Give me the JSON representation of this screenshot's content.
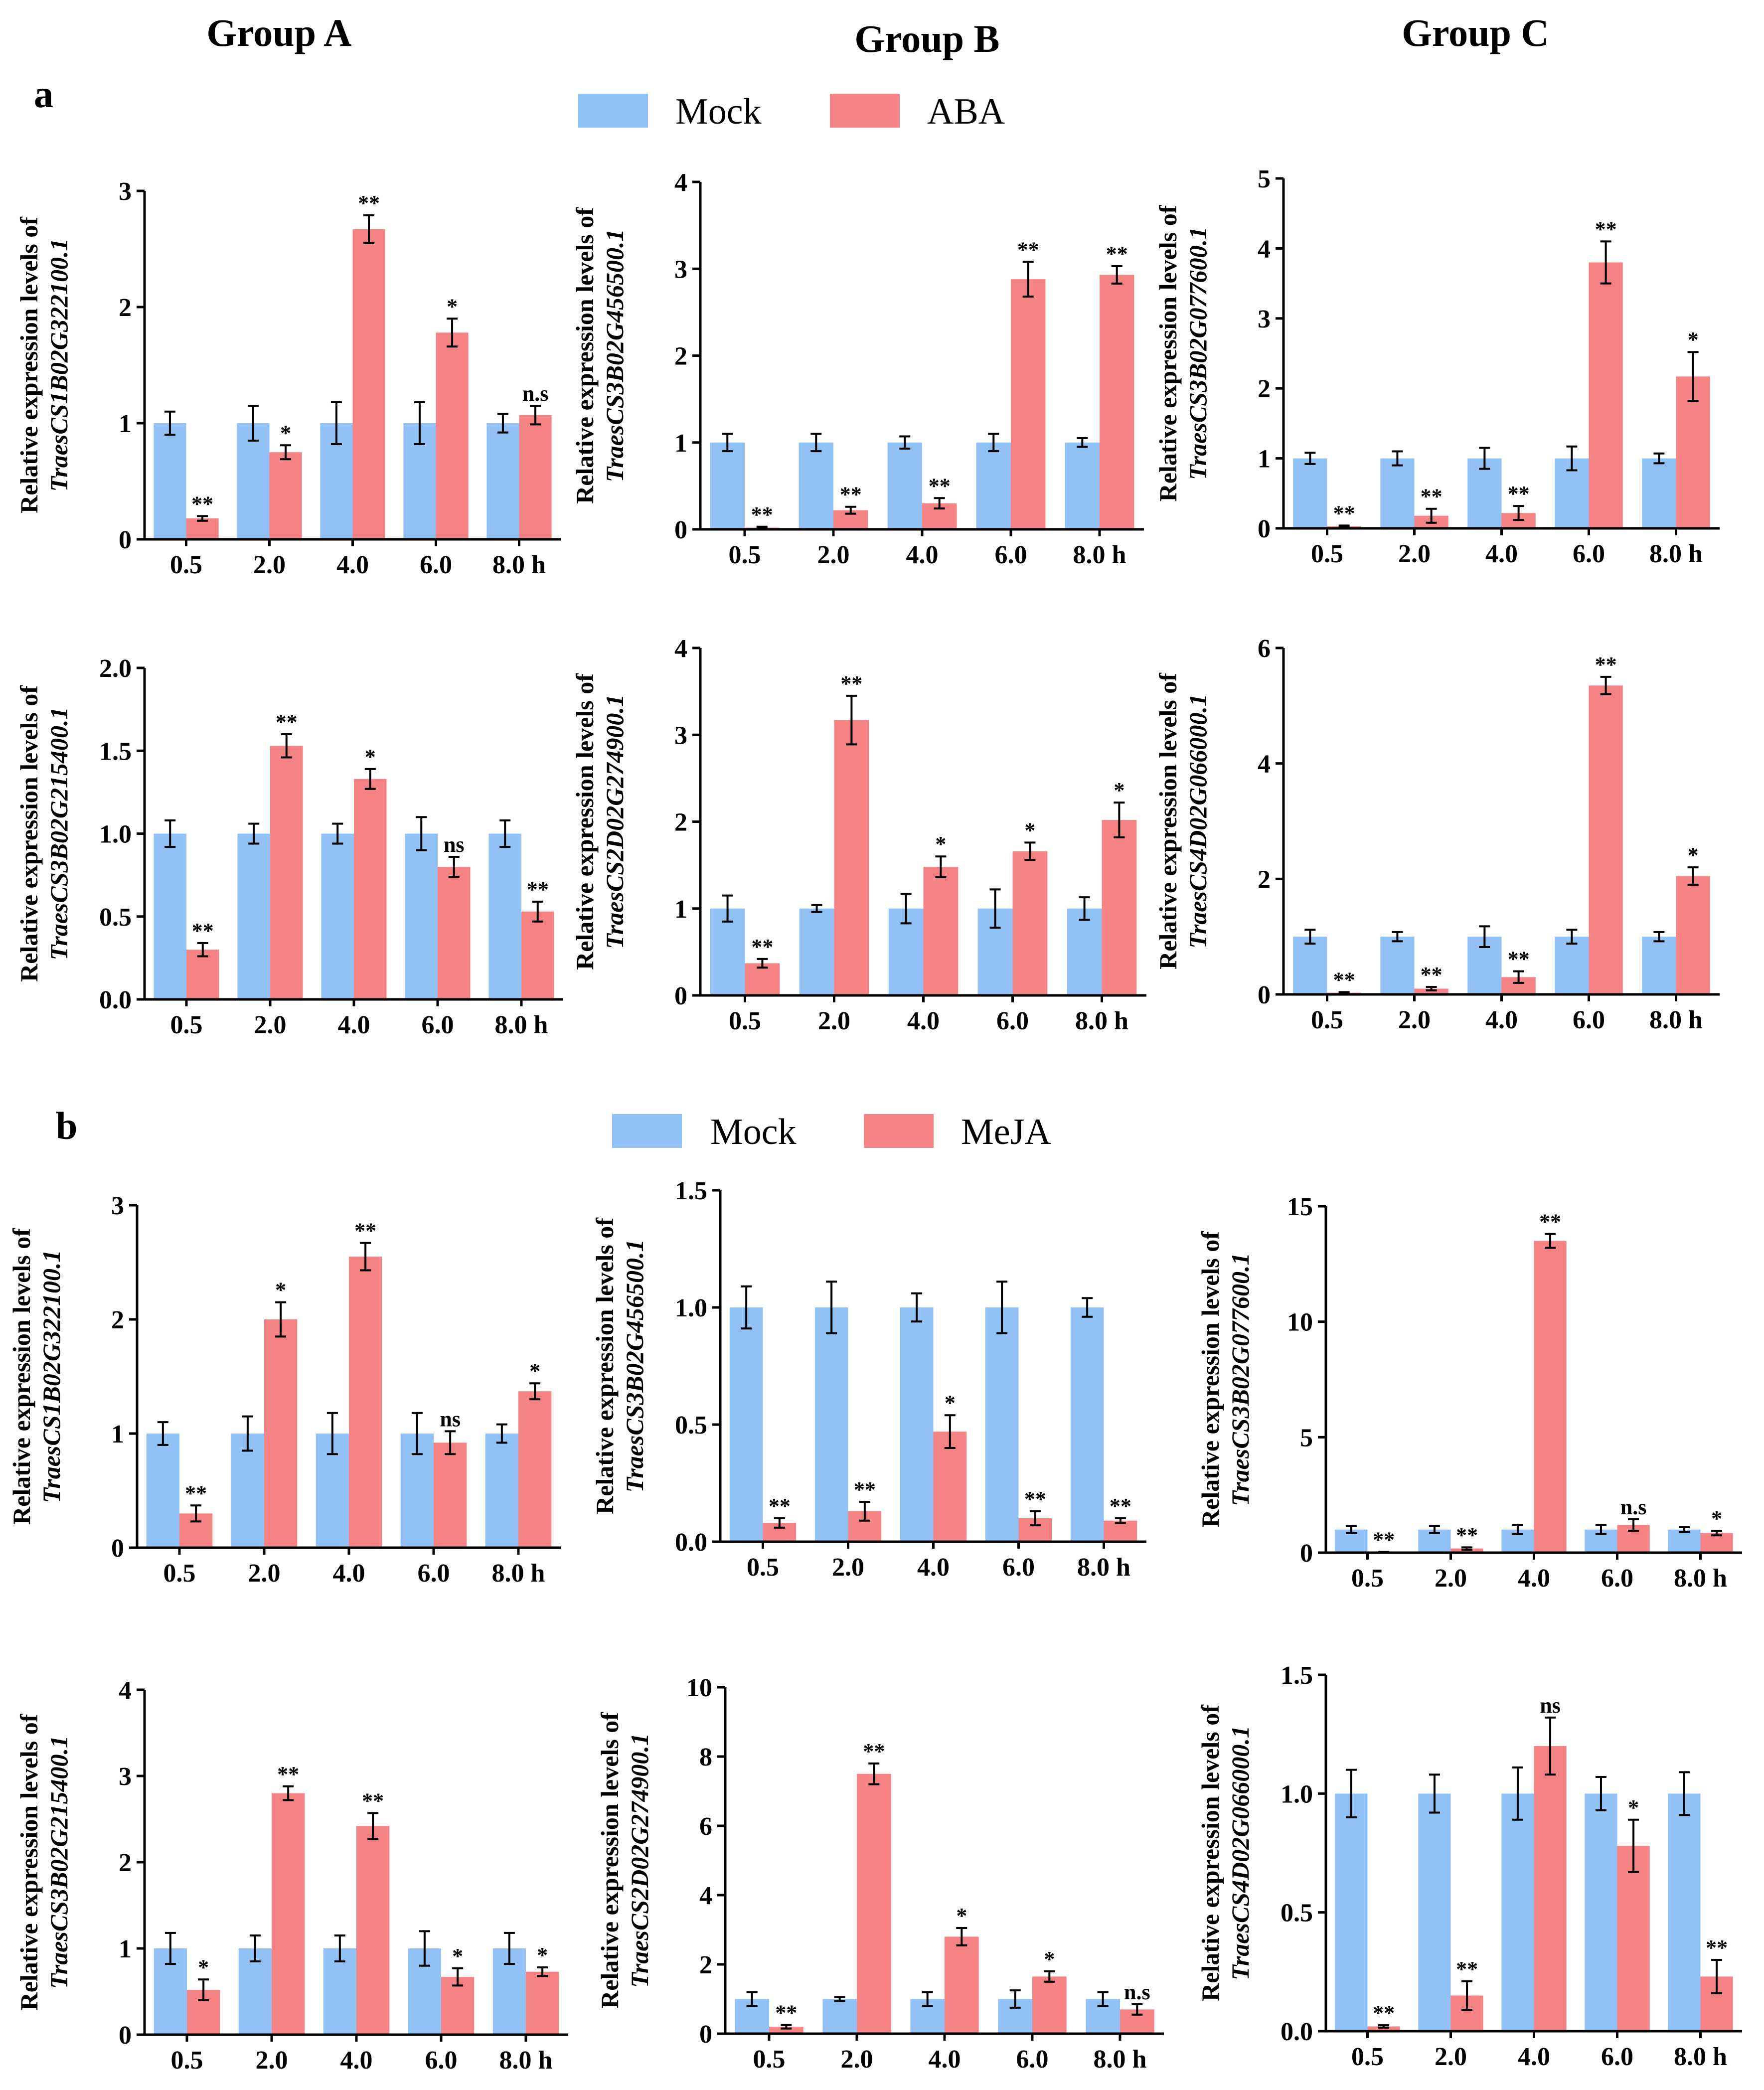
{
  "figure": {
    "groups": [
      "Group A",
      "Group B",
      "Group C"
    ],
    "panels": [
      "a",
      "b"
    ],
    "legends": [
      {
        "items": [
          {
            "label": "Mock",
            "color": "#92c1f5"
          },
          {
            "label": "ABA",
            "color": "#f68383"
          }
        ]
      },
      {
        "items": [
          {
            "label": "Mock",
            "color": "#92c1f5"
          },
          {
            "label": "MeJA",
            "color": "#f68383"
          }
        ]
      }
    ],
    "ylabel_prefix": "Relative expression levels of",
    "colors": {
      "mock": "#92c1f5",
      "treat": "#f68383"
    }
  },
  "chart_data": [
    {
      "type": "bar",
      "panel": "a",
      "treatment": "ABA",
      "gene": "TraesCS1B02G322100.1",
      "categories": [
        "0.5",
        "2.0",
        "4.0",
        "6.0",
        "8.0 h"
      ],
      "ylim": [
        0,
        3
      ],
      "yticks": [
        "0",
        "1",
        "2",
        "3"
      ],
      "series": [
        {
          "name": "Mock",
          "values": [
            1.0,
            1.0,
            1.0,
            1.0,
            1.0
          ],
          "errors": [
            0.1,
            0.15,
            0.18,
            0.18,
            0.08
          ]
        },
        {
          "name": "ABA",
          "values": [
            0.18,
            0.75,
            2.67,
            1.78,
            1.07
          ],
          "errors": [
            0.02,
            0.06,
            0.12,
            0.12,
            0.08
          ],
          "significance": [
            "**",
            "*",
            "**",
            "*",
            "n.s"
          ]
        }
      ]
    },
    {
      "type": "bar",
      "panel": "a",
      "treatment": "ABA",
      "gene": "TraesCS3B02G456500.1",
      "categories": [
        "0.5",
        "2.0",
        "4.0",
        "6.0",
        "8.0 h"
      ],
      "ylim": [
        0,
        4
      ],
      "yticks": [
        "0",
        "1",
        "2",
        "3",
        "4"
      ],
      "series": [
        {
          "name": "Mock",
          "values": [
            1.0,
            1.0,
            1.0,
            1.0,
            1.0
          ],
          "errors": [
            0.1,
            0.1,
            0.07,
            0.1,
            0.05
          ]
        },
        {
          "name": "ABA",
          "values": [
            0.02,
            0.22,
            0.3,
            2.88,
            2.93
          ],
          "errors": [
            0.01,
            0.04,
            0.06,
            0.2,
            0.1
          ],
          "significance": [
            "**",
            "**",
            "**",
            "**",
            "**"
          ]
        }
      ]
    },
    {
      "type": "bar",
      "panel": "a",
      "treatment": "ABA",
      "gene": "TraesCS3B02G077600.1",
      "categories": [
        "0.5",
        "2.0",
        "4.0",
        "6.0",
        "8.0 h"
      ],
      "ylim": [
        0,
        5
      ],
      "yticks": [
        "0",
        "1",
        "2",
        "3",
        "4",
        "5"
      ],
      "series": [
        {
          "name": "Mock",
          "values": [
            1.0,
            1.0,
            1.0,
            1.0,
            1.0
          ],
          "errors": [
            0.08,
            0.1,
            0.15,
            0.17,
            0.07
          ]
        },
        {
          "name": "ABA",
          "values": [
            0.03,
            0.18,
            0.22,
            3.8,
            2.17
          ],
          "errors": [
            0.01,
            0.1,
            0.1,
            0.3,
            0.35
          ],
          "significance": [
            "**",
            "**",
            "**",
            "**",
            "*"
          ]
        }
      ]
    },
    {
      "type": "bar",
      "panel": "a",
      "treatment": "ABA",
      "gene": "TraesCS3B02G215400.1",
      "categories": [
        "0.5",
        "2.0",
        "4.0",
        "6.0",
        "8.0 h"
      ],
      "ylim": [
        0,
        2.0
      ],
      "yticks": [
        "0.0",
        "0.5",
        "1.0",
        "1.5",
        "2.0"
      ],
      "series": [
        {
          "name": "Mock",
          "values": [
            1.0,
            1.0,
            1.0,
            1.0,
            1.0
          ],
          "errors": [
            0.08,
            0.06,
            0.06,
            0.1,
            0.08
          ]
        },
        {
          "name": "ABA",
          "values": [
            0.3,
            1.53,
            1.33,
            0.8,
            0.53
          ],
          "errors": [
            0.04,
            0.07,
            0.06,
            0.06,
            0.06
          ],
          "significance": [
            "**",
            "**",
            "*",
            "ns",
            "**"
          ]
        }
      ]
    },
    {
      "type": "bar",
      "panel": "a",
      "treatment": "ABA",
      "gene": "TraesCS2D02G274900.1",
      "categories": [
        "0.5",
        "2.0",
        "4.0",
        "6.0",
        "8.0 h"
      ],
      "ylim": [
        0,
        4
      ],
      "yticks": [
        "0",
        "1",
        "2",
        "3",
        "4"
      ],
      "series": [
        {
          "name": "Mock",
          "values": [
            1.0,
            1.0,
            1.0,
            1.0,
            1.0
          ],
          "errors": [
            0.15,
            0.04,
            0.17,
            0.22,
            0.13
          ]
        },
        {
          "name": "ABA",
          "values": [
            0.37,
            3.17,
            1.48,
            1.66,
            2.02
          ],
          "errors": [
            0.05,
            0.28,
            0.12,
            0.1,
            0.2
          ],
          "significance": [
            "**",
            "**",
            "*",
            "*",
            "*"
          ]
        }
      ]
    },
    {
      "type": "bar",
      "panel": "a",
      "treatment": "ABA",
      "gene": "TraesCS4D02G066000.1",
      "categories": [
        "0.5",
        "2.0",
        "4.0",
        "6.0",
        "8.0 h"
      ],
      "ylim": [
        0,
        6
      ],
      "yticks": [
        "0",
        "2",
        "4",
        "6"
      ],
      "series": [
        {
          "name": "Mock",
          "values": [
            1.0,
            1.0,
            1.0,
            1.0,
            1.0
          ],
          "errors": [
            0.12,
            0.08,
            0.18,
            0.12,
            0.08
          ]
        },
        {
          "name": "ABA",
          "values": [
            0.03,
            0.1,
            0.3,
            5.35,
            2.05
          ],
          "errors": [
            0.01,
            0.03,
            0.1,
            0.15,
            0.15
          ],
          "significance": [
            "**",
            "**",
            "**",
            "**",
            "*"
          ]
        }
      ]
    },
    {
      "type": "bar",
      "panel": "b",
      "treatment": "MeJA",
      "gene": "TraesCS1B02G322100.1",
      "categories": [
        "0.5",
        "2.0",
        "4.0",
        "6.0",
        "8.0 h"
      ],
      "ylim": [
        0,
        3
      ],
      "yticks": [
        "0",
        "1",
        "2",
        "3"
      ],
      "series": [
        {
          "name": "Mock",
          "values": [
            1.0,
            1.0,
            1.0,
            1.0,
            1.0
          ],
          "errors": [
            0.1,
            0.15,
            0.18,
            0.18,
            0.08
          ]
        },
        {
          "name": "MeJA",
          "values": [
            0.3,
            2.0,
            2.55,
            0.92,
            1.37
          ],
          "errors": [
            0.07,
            0.15,
            0.12,
            0.1,
            0.07
          ],
          "significance": [
            "**",
            "*",
            "**",
            "ns",
            "*"
          ]
        }
      ]
    },
    {
      "type": "bar",
      "panel": "b",
      "treatment": "MeJA",
      "gene": "TraesCS3B02G456500.1",
      "categories": [
        "0.5",
        "2.0",
        "4.0",
        "6.0",
        "8.0 h"
      ],
      "ylim": [
        0,
        1.5
      ],
      "yticks": [
        "0.0",
        "0.5",
        "1.0",
        "1.5"
      ],
      "series": [
        {
          "name": "Mock",
          "values": [
            1.0,
            1.0,
            1.0,
            1.0,
            1.0
          ],
          "errors": [
            0.09,
            0.11,
            0.06,
            0.11,
            0.04
          ]
        },
        {
          "name": "MeJA",
          "values": [
            0.08,
            0.13,
            0.47,
            0.1,
            0.09
          ],
          "errors": [
            0.02,
            0.04,
            0.07,
            0.03,
            0.01
          ],
          "significance": [
            "**",
            "**",
            "*",
            "**",
            "**"
          ]
        }
      ]
    },
    {
      "type": "bar",
      "panel": "b",
      "treatment": "MeJA",
      "gene": "TraesCS3B02G077600.1",
      "categories": [
        "0.5",
        "2.0",
        "4.0",
        "6.0",
        "8.0 h"
      ],
      "ylim": [
        0,
        15
      ],
      "yticks": [
        "0",
        "5",
        "10",
        "15"
      ],
      "series": [
        {
          "name": "Mock",
          "values": [
            1.0,
            1.0,
            1.0,
            1.0,
            1.0
          ],
          "errors": [
            0.15,
            0.15,
            0.2,
            0.2,
            0.1
          ]
        },
        {
          "name": "MeJA",
          "values": [
            0.02,
            0.18,
            13.5,
            1.2,
            0.85
          ],
          "errors": [
            0.01,
            0.05,
            0.3,
            0.25,
            0.1
          ],
          "significance": [
            "**",
            "**",
            "**",
            "n.s",
            "*"
          ]
        }
      ]
    },
    {
      "type": "bar",
      "panel": "b",
      "treatment": "MeJA",
      "gene": "TraesCS3B02G215400.1",
      "categories": [
        "0.5",
        "2.0",
        "4.0",
        "6.0",
        "8.0 h"
      ],
      "ylim": [
        0,
        4
      ],
      "yticks": [
        "0",
        "1",
        "2",
        "3",
        "4"
      ],
      "series": [
        {
          "name": "Mock",
          "values": [
            1.0,
            1.0,
            1.0,
            1.0,
            1.0
          ],
          "errors": [
            0.18,
            0.15,
            0.15,
            0.2,
            0.18
          ]
        },
        {
          "name": "MeJA",
          "values": [
            0.52,
            2.8,
            2.42,
            0.67,
            0.73
          ],
          "errors": [
            0.12,
            0.08,
            0.15,
            0.1,
            0.05
          ],
          "significance": [
            "*",
            "**",
            "**",
            "*",
            "*"
          ]
        }
      ]
    },
    {
      "type": "bar",
      "panel": "b",
      "treatment": "MeJA",
      "gene": "TraesCS2D02G274900.1",
      "categories": [
        "0.5",
        "2.0",
        "4.0",
        "6.0",
        "8.0 h"
      ],
      "ylim": [
        0,
        10
      ],
      "yticks": [
        "0",
        "2",
        "4",
        "6",
        "8",
        "10"
      ],
      "series": [
        {
          "name": "Mock",
          "values": [
            1.0,
            1.0,
            1.0,
            1.0,
            1.0
          ],
          "errors": [
            0.2,
            0.06,
            0.2,
            0.25,
            0.2
          ]
        },
        {
          "name": "MeJA",
          "values": [
            0.2,
            7.5,
            2.8,
            1.65,
            0.7
          ],
          "errors": [
            0.05,
            0.3,
            0.25,
            0.15,
            0.15
          ],
          "significance": [
            "**",
            "**",
            "*",
            "*",
            "n.s"
          ]
        }
      ]
    },
    {
      "type": "bar",
      "panel": "b",
      "treatment": "MeJA",
      "gene": "TraesCS4D02G066000.1",
      "categories": [
        "0.5",
        "2.0",
        "4.0",
        "6.0",
        "8.0 h"
      ],
      "ylim": [
        0,
        1.5
      ],
      "yticks": [
        "0.0",
        "0.5",
        "1.0",
        "1.5"
      ],
      "series": [
        {
          "name": "Mock",
          "values": [
            1.0,
            1.0,
            1.0,
            1.0,
            1.0
          ],
          "errors": [
            0.1,
            0.08,
            0.11,
            0.07,
            0.09
          ]
        },
        {
          "name": "MeJA",
          "values": [
            0.02,
            0.15,
            1.2,
            0.78,
            0.23
          ],
          "errors": [
            0.005,
            0.06,
            0.12,
            0.11,
            0.07
          ],
          "significance": [
            "**",
            "**",
            "ns",
            "*",
            "**"
          ]
        }
      ]
    }
  ]
}
